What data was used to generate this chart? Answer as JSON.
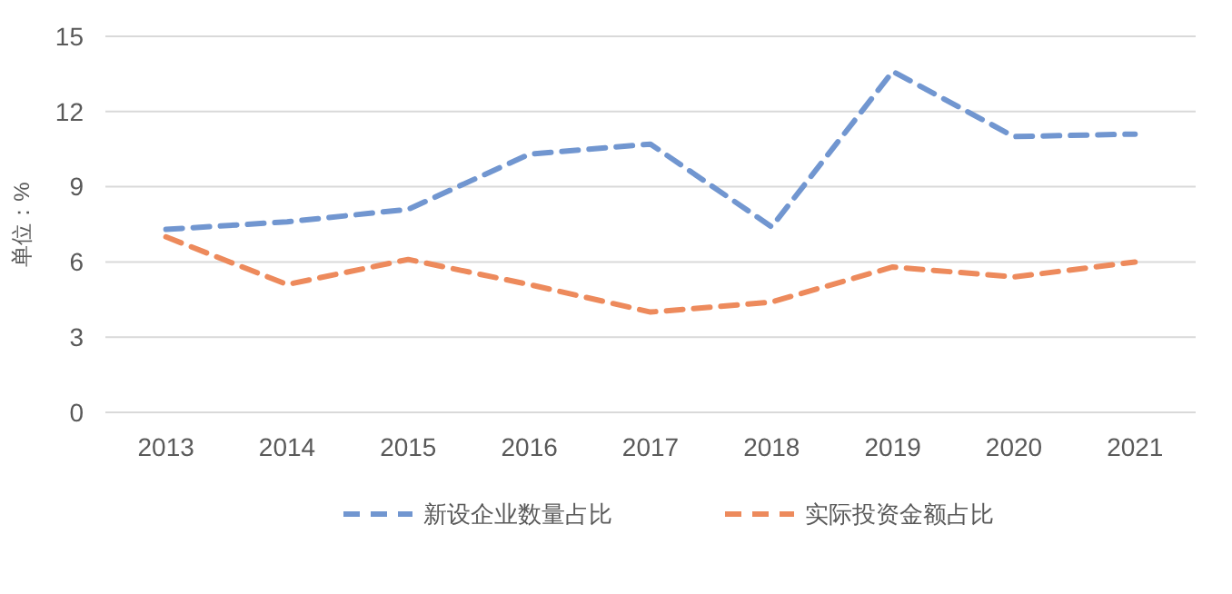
{
  "chart_data": {
    "type": "line",
    "ylabel": "单位：%",
    "categories": [
      "2013",
      "2014",
      "2015",
      "2016",
      "2017",
      "2018",
      "2019",
      "2020",
      "2021"
    ],
    "series": [
      {
        "name": "新设企业数量占比",
        "color": "#7196d0",
        "values": [
          7.3,
          7.6,
          8.1,
          10.3,
          10.7,
          7.4,
          13.6,
          11.0,
          11.1
        ]
      },
      {
        "name": "实际投资金额占比",
        "color": "#ed8a5c",
        "values": [
          7.0,
          5.1,
          6.1,
          5.1,
          4.0,
          4.4,
          5.8,
          5.4,
          6.0
        ]
      }
    ],
    "ylim": [
      0,
      15
    ],
    "yticks": [
      0,
      3,
      6,
      9,
      12,
      15
    ],
    "grid": "y",
    "legend": "bottom",
    "line_style": "dashed"
  }
}
